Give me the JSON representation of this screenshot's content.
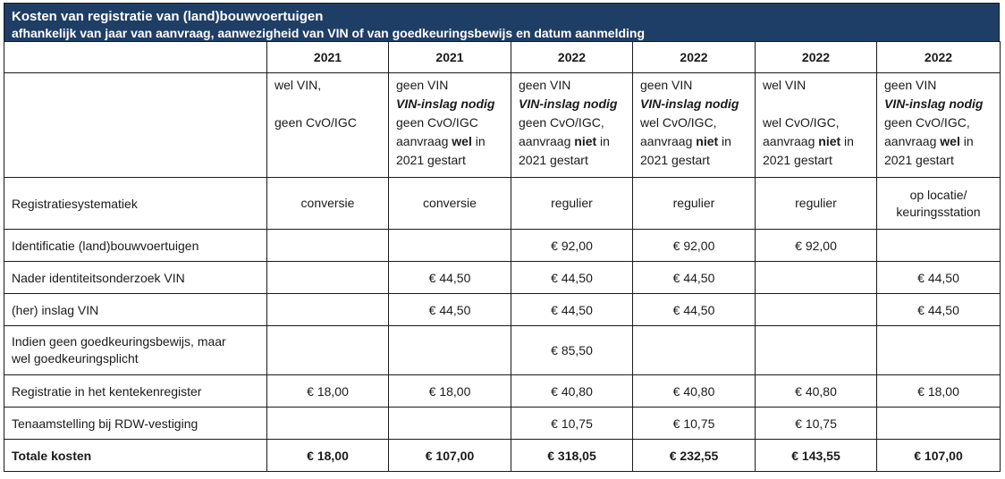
{
  "title": {
    "line1": "Kosten van registratie van (land)bouwvoertuigen",
    "line2": "afhankelijk van jaar van aanvraag, aanwezigheid van VIN of van goedkeuringsbewijs en datum aanmelding"
  },
  "columns": [
    {
      "year": "2021",
      "cond": [
        "wel VIN,",
        "",
        "geen CvO/IGC"
      ]
    },
    {
      "year": "2021",
      "cond": [
        "geen VIN",
        "VIN-inslag nodig",
        "geen CvO/IGC",
        "aanvraag wel in",
        "2021 gestart"
      ]
    },
    {
      "year": "2022",
      "cond": [
        "geen VIN",
        "VIN-inslag nodig",
        "geen CvO/IGC,",
        "aanvraag niet in",
        "2021 gestart"
      ]
    },
    {
      "year": "2022",
      "cond": [
        "geen VIN",
        "VIN-inslag nodig",
        "wel CvO/IGC,",
        "aanvraag niet in",
        "2021 gestart"
      ]
    },
    {
      "year": "2022",
      "cond": [
        "wel VIN",
        "",
        "wel CvO/IGC,",
        "aanvraag niet in",
        "2021 gestart"
      ]
    },
    {
      "year": "2022",
      "cond": [
        "geen VIN",
        "VIN-inslag nodig",
        "geen CvO/IGC,",
        "aanvraag wel in",
        "2021 gestart"
      ]
    }
  ],
  "cond_emph": {
    "c1": {
      "a": "aanvraag ",
      "b": "wel",
      "c": " in"
    },
    "c2": {
      "a": "aanvraag ",
      "b": "niet",
      "c": " in"
    },
    "c3": {
      "a": "aanvraag ",
      "b": "niet",
      "c": " in"
    },
    "c4": {
      "a": "aanvraag ",
      "b": "niet",
      "c": " in"
    },
    "c5": {
      "a": "aanvraag ",
      "b": "wel",
      "c": " in"
    }
  },
  "rows": [
    {
      "label": [
        "Registratiesystematiek"
      ],
      "values": [
        "conversie",
        "conversie",
        "regulier",
        "regulier",
        "regulier",
        "op locatie/ keuringsstation"
      ]
    },
    {
      "label": [
        "Identificatie (land)bouwvoertuigen"
      ],
      "values": [
        "",
        "",
        "€ 92,00",
        "€ 92,00",
        "€ 92,00",
        ""
      ]
    },
    {
      "label": [
        "Nader identiteitsonderzoek VIN"
      ],
      "values": [
        "",
        "€ 44,50",
        "€ 44,50",
        "€ 44,50",
        "",
        "€ 44,50"
      ]
    },
    {
      "label": [
        "(her) inslag VIN"
      ],
      "values": [
        "",
        "€ 44,50",
        "€ 44,50",
        "€ 44,50",
        "",
        "€ 44,50"
      ]
    },
    {
      "label": [
        "Indien geen goedkeuringsbewijs, maar",
        "wel goedkeuringsplicht"
      ],
      "values": [
        "",
        "",
        "€ 85,50",
        "",
        "",
        ""
      ]
    },
    {
      "label": [
        "Registratie in het kentekenregister"
      ],
      "values": [
        "€ 18,00",
        "€ 18,00",
        "€ 40,80",
        "€ 40,80",
        "€ 40,80",
        "€ 18,00"
      ]
    },
    {
      "label": [
        "Tenaamstelling bij RDW-vestiging"
      ],
      "values": [
        "",
        "",
        "€ 10,75",
        "€ 10,75",
        "€ 10,75",
        ""
      ]
    }
  ],
  "total": {
    "label": "Totale kosten",
    "values": [
      "€ 18,00",
      "€ 107,00",
      "€ 318,05",
      "€ 232,55",
      "€ 143,55",
      "€ 107,00"
    ]
  },
  "sys_last": [
    "op locatie/",
    "keuringsstation"
  ]
}
